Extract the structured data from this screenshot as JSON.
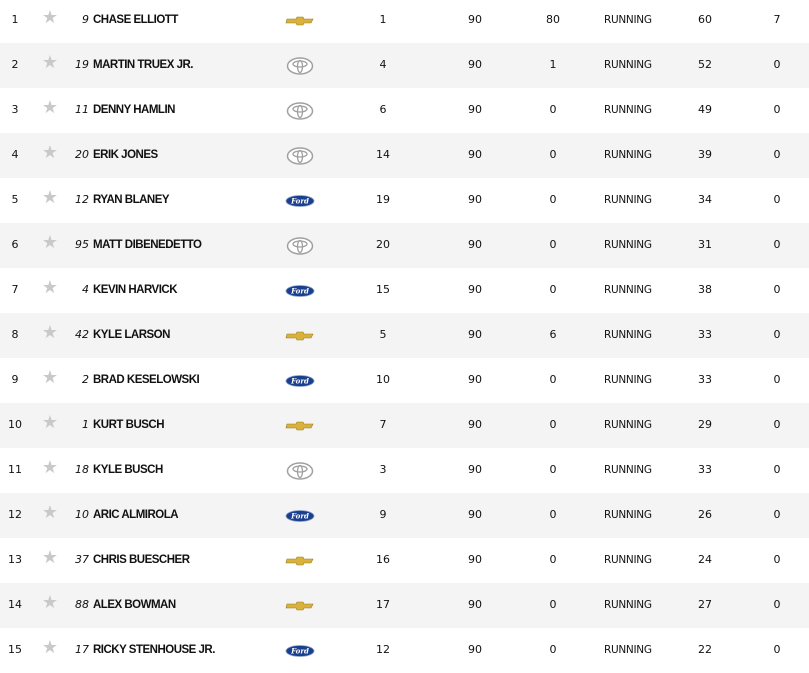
{
  "colors": {
    "chevrolet": "#d8b23a",
    "ford": "#1b3f8f",
    "toyota": "#a0a0a0",
    "star": "#c9c9c9",
    "alt_row": "#f4f4f4"
  },
  "rows": [
    {
      "pos": "1",
      "num": "9",
      "driver": "CHASE ELLIOTT",
      "make": "chevrolet",
      "start": "1",
      "laps": "90",
      "led": "80",
      "status": "RUNNING",
      "points": "60",
      "bonus": "7"
    },
    {
      "pos": "2",
      "num": "19",
      "driver": "MARTIN TRUEX JR.",
      "make": "toyota",
      "start": "4",
      "laps": "90",
      "led": "1",
      "status": "RUNNING",
      "points": "52",
      "bonus": "0"
    },
    {
      "pos": "3",
      "num": "11",
      "driver": "DENNY HAMLIN",
      "make": "toyota",
      "start": "6",
      "laps": "90",
      "led": "0",
      "status": "RUNNING",
      "points": "49",
      "bonus": "0"
    },
    {
      "pos": "4",
      "num": "20",
      "driver": "ERIK JONES",
      "make": "toyota",
      "start": "14",
      "laps": "90",
      "led": "0",
      "status": "RUNNING",
      "points": "39",
      "bonus": "0"
    },
    {
      "pos": "5",
      "num": "12",
      "driver": "RYAN BLANEY",
      "make": "ford",
      "start": "19",
      "laps": "90",
      "led": "0",
      "status": "RUNNING",
      "points": "34",
      "bonus": "0"
    },
    {
      "pos": "6",
      "num": "95",
      "driver": "MATT DIBENEDETTO",
      "make": "toyota",
      "start": "20",
      "laps": "90",
      "led": "0",
      "status": "RUNNING",
      "points": "31",
      "bonus": "0"
    },
    {
      "pos": "7",
      "num": "4",
      "driver": "KEVIN HARVICK",
      "make": "ford",
      "start": "15",
      "laps": "90",
      "led": "0",
      "status": "RUNNING",
      "points": "38",
      "bonus": "0"
    },
    {
      "pos": "8",
      "num": "42",
      "driver": "KYLE LARSON",
      "make": "chevrolet",
      "start": "5",
      "laps": "90",
      "led": "6",
      "status": "RUNNING",
      "points": "33",
      "bonus": "0"
    },
    {
      "pos": "9",
      "num": "2",
      "driver": "BRAD KESELOWSKI",
      "make": "ford",
      "start": "10",
      "laps": "90",
      "led": "0",
      "status": "RUNNING",
      "points": "33",
      "bonus": "0"
    },
    {
      "pos": "10",
      "num": "1",
      "driver": "KURT BUSCH",
      "make": "chevrolet",
      "start": "7",
      "laps": "90",
      "led": "0",
      "status": "RUNNING",
      "points": "29",
      "bonus": "0"
    },
    {
      "pos": "11",
      "num": "18",
      "driver": "KYLE BUSCH",
      "make": "toyota",
      "start": "3",
      "laps": "90",
      "led": "0",
      "status": "RUNNING",
      "points": "33",
      "bonus": "0"
    },
    {
      "pos": "12",
      "num": "10",
      "driver": "ARIC ALMIROLA",
      "make": "ford",
      "start": "9",
      "laps": "90",
      "led": "0",
      "status": "RUNNING",
      "points": "26",
      "bonus": "0"
    },
    {
      "pos": "13",
      "num": "37",
      "driver": "CHRIS BUESCHER",
      "make": "chevrolet",
      "start": "16",
      "laps": "90",
      "led": "0",
      "status": "RUNNING",
      "points": "24",
      "bonus": "0"
    },
    {
      "pos": "14",
      "num": "88",
      "driver": "ALEX BOWMAN",
      "make": "chevrolet",
      "start": "17",
      "laps": "90",
      "led": "0",
      "status": "RUNNING",
      "points": "27",
      "bonus": "0"
    },
    {
      "pos": "15",
      "num": "17",
      "driver": "RICKY STENHOUSE JR.",
      "make": "ford",
      "start": "12",
      "laps": "90",
      "led": "0",
      "status": "RUNNING",
      "points": "22",
      "bonus": "0"
    }
  ]
}
